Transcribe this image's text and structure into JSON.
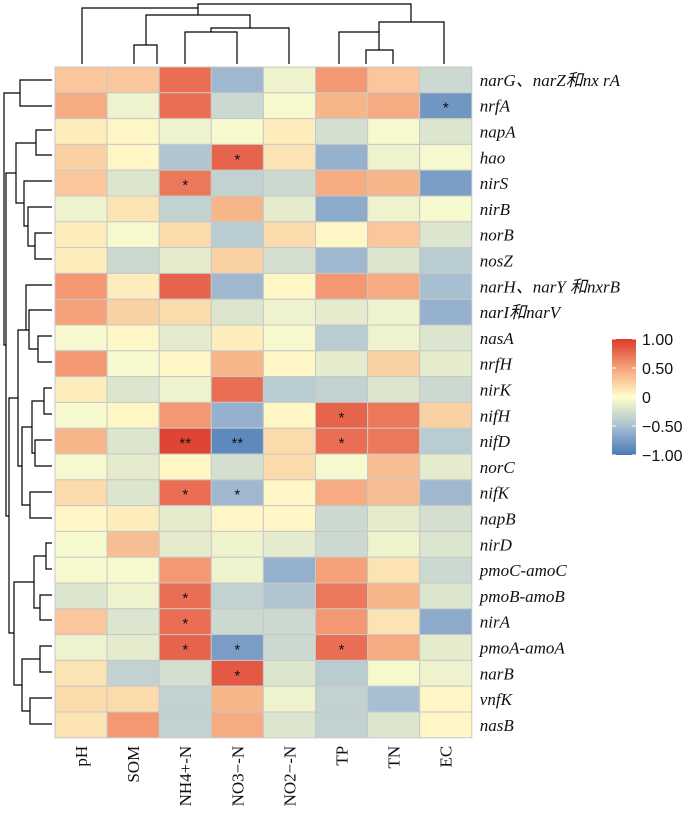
{
  "chart_data": {
    "type": "heatmap",
    "title": "",
    "columns": [
      "pH",
      "SOM",
      "NH4+-N",
      "NO3−-N",
      "NO2−-N",
      "TP",
      "TN",
      "EC"
    ],
    "rows": [
      "narG、narZ和nx rA",
      "nrfA",
      "napA",
      "hao",
      "nirS",
      "nirB",
      "norB",
      "nosZ",
      "narH、narY 和nxrB",
      "narI和narV",
      "nasA",
      "nrfH",
      "nirK",
      "nifH",
      "nifD",
      "norC",
      "nifK",
      "napB",
      "nirD",
      "pmoC-amoC",
      "pmoB-amoB",
      "nirA",
      "pmoA-amoA",
      "narB",
      "vnfK",
      "nasB"
    ],
    "values": [
      [
        0.3,
        0.3,
        0.75,
        -0.55,
        -0.1,
        0.55,
        0.3,
        -0.3
      ],
      [
        0.45,
        -0.1,
        0.75,
        -0.3,
        -0.05,
        0.4,
        0.45,
        -0.8
      ],
      [
        0.1,
        0.05,
        -0.1,
        -0.05,
        0.1,
        -0.25,
        -0.05,
        -0.2
      ],
      [
        0.25,
        0.05,
        -0.45,
        0.8,
        0.15,
        -0.6,
        -0.1,
        -0.05
      ],
      [
        0.3,
        -0.2,
        0.7,
        -0.35,
        -0.3,
        0.45,
        0.4,
        -0.75
      ],
      [
        -0.1,
        0.15,
        -0.35,
        0.4,
        -0.15,
        -0.65,
        -0.1,
        -0.05
      ],
      [
        0.1,
        -0.05,
        0.2,
        -0.4,
        0.2,
        0.05,
        0.3,
        -0.2
      ],
      [
        0.1,
        -0.3,
        -0.15,
        0.25,
        -0.25,
        -0.55,
        -0.2,
        -0.4
      ],
      [
        0.55,
        0.1,
        0.8,
        -0.55,
        0.05,
        0.55,
        0.45,
        -0.5
      ],
      [
        0.5,
        0.25,
        0.2,
        -0.2,
        -0.1,
        -0.15,
        -0.1,
        -0.6
      ],
      [
        -0.05,
        0.05,
        -0.15,
        0.1,
        -0.05,
        -0.4,
        -0.1,
        -0.2
      ],
      [
        0.55,
        -0.05,
        0.05,
        0.4,
        0.05,
        -0.15,
        0.25,
        -0.15
      ],
      [
        0.1,
        -0.2,
        -0.1,
        0.75,
        -0.4,
        -0.35,
        -0.2,
        -0.3
      ],
      [
        -0.05,
        0.05,
        0.55,
        -0.6,
        0.05,
        0.8,
        0.7,
        0.25
      ],
      [
        0.4,
        -0.2,
        0.95,
        -0.9,
        0.2,
        0.75,
        0.7,
        -0.4
      ],
      [
        -0.05,
        -0.15,
        0.05,
        -0.25,
        0.2,
        -0.05,
        0.35,
        -0.15
      ],
      [
        0.2,
        -0.2,
        0.75,
        -0.55,
        0.05,
        0.45,
        0.35,
        -0.55
      ],
      [
        0.05,
        0.1,
        -0.15,
        0.05,
        0.05,
        -0.3,
        -0.15,
        -0.25
      ],
      [
        -0.05,
        0.35,
        -0.15,
        -0.1,
        -0.15,
        -0.3,
        -0.1,
        -0.2
      ],
      [
        -0.05,
        -0.05,
        0.55,
        -0.1,
        -0.6,
        0.5,
        0.15,
        -0.3
      ],
      [
        -0.2,
        -0.1,
        0.75,
        -0.35,
        -0.45,
        0.7,
        0.4,
        -0.2
      ],
      [
        0.3,
        -0.2,
        0.75,
        -0.3,
        -0.3,
        0.55,
        0.15,
        -0.65
      ],
      [
        -0.1,
        -0.15,
        0.8,
        -0.75,
        -0.3,
        0.75,
        0.45,
        -0.15
      ],
      [
        0.15,
        -0.35,
        -0.25,
        0.85,
        -0.2,
        -0.4,
        -0.05,
        -0.1
      ],
      [
        0.2,
        0.2,
        -0.35,
        0.4,
        -0.1,
        -0.35,
        -0.5,
        0.05
      ],
      [
        0.15,
        0.55,
        -0.35,
        0.45,
        -0.2,
        -0.35,
        -0.2,
        0.05
      ]
    ],
    "significance": [
      [
        "",
        "",
        "",
        "",
        "",
        "",
        "",
        ""
      ],
      [
        "",
        "",
        "",
        "",
        "",
        "",
        "",
        "*"
      ],
      [
        "",
        "",
        "",
        "",
        "",
        "",
        "",
        ""
      ],
      [
        "",
        "",
        "",
        "*",
        "",
        "",
        "",
        ""
      ],
      [
        "",
        "",
        "*",
        "",
        "",
        "",
        "",
        ""
      ],
      [
        "",
        "",
        "",
        "",
        "",
        "",
        "",
        ""
      ],
      [
        "",
        "",
        "",
        "",
        "",
        "",
        "",
        ""
      ],
      [
        "",
        "",
        "",
        "",
        "",
        "",
        "",
        ""
      ],
      [
        "",
        "",
        "",
        "",
        "",
        "",
        "",
        ""
      ],
      [
        "",
        "",
        "",
        "",
        "",
        "",
        "",
        ""
      ],
      [
        "",
        "",
        "",
        "",
        "",
        "",
        "",
        ""
      ],
      [
        "",
        "",
        "",
        "",
        "",
        "",
        "",
        ""
      ],
      [
        "",
        "",
        "",
        "",
        "",
        "",
        "",
        ""
      ],
      [
        "",
        "",
        "",
        "",
        "",
        "*",
        "",
        ""
      ],
      [
        "",
        "",
        "**",
        "**",
        "",
        "*",
        "",
        ""
      ],
      [
        "",
        "",
        "",
        "",
        "",
        "",
        "",
        ""
      ],
      [
        "",
        "",
        "*",
        "*",
        "",
        "",
        "",
        ""
      ],
      [
        "",
        "",
        "",
        "",
        "",
        "",
        "",
        ""
      ],
      [
        "",
        "",
        "",
        "",
        "",
        "",
        "",
        ""
      ],
      [
        "",
        "",
        "",
        "",
        "",
        "",
        "",
        ""
      ],
      [
        "",
        "",
        "*",
        "",
        "",
        "",
        "",
        ""
      ],
      [
        "",
        "",
        "*",
        "",
        "",
        "",
        "",
        ""
      ],
      [
        "",
        "",
        "*",
        "*",
        "",
        "*",
        "",
        ""
      ],
      [
        "",
        "",
        "",
        "*",
        "",
        "",
        "",
        ""
      ],
      [
        "",
        "",
        "",
        "",
        "",
        "",
        "",
        ""
      ],
      [
        "",
        "",
        "",
        "",
        "",
        "",
        "",
        ""
      ]
    ],
    "colorscale": {
      "min": -1.0,
      "max": 1.0,
      "colors": [
        "#4a7bb7",
        "#a8bfd2",
        "#ffffcc",
        "#f5a27a",
        "#dc3a2c"
      ],
      "ticks": [
        "1.00",
        "0.50",
        "0",
        "−0.50",
        "−1.00"
      ]
    },
    "column_dendrogram": true,
    "row_dendrogram": true,
    "legend_position": "right"
  }
}
